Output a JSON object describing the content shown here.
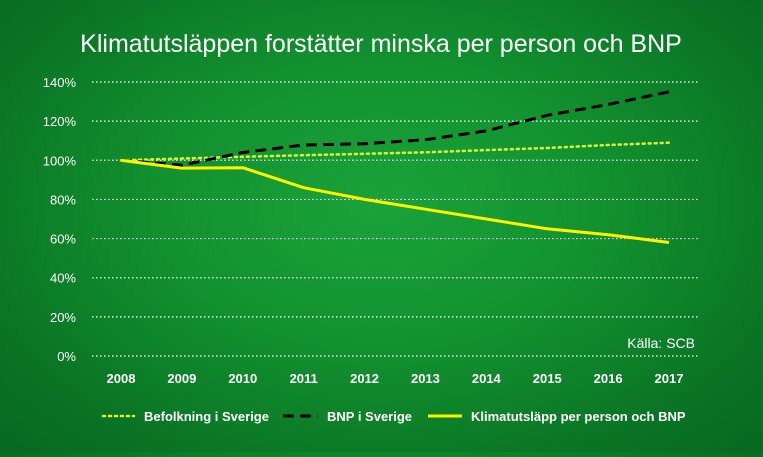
{
  "chart_data": {
    "type": "line",
    "title": "Klimatutsläppen forstätter minska per person och BNP",
    "source": "Källa: SCB",
    "xlabel": "",
    "ylabel": "",
    "categories": [
      "2008",
      "2009",
      "2010",
      "2011",
      "2012",
      "2013",
      "2014",
      "2015",
      "2016",
      "2017"
    ],
    "ylim": [
      0,
      140
    ],
    "yticks": [
      0,
      20,
      40,
      60,
      80,
      100,
      120,
      140
    ],
    "ytick_labels": [
      "0%",
      "20%",
      "40%",
      "60%",
      "80%",
      "100%",
      "120%",
      "140%"
    ],
    "grid": true,
    "legend_position": "bottom",
    "series": [
      {
        "name": "Befolkning i Sverige",
        "values": [
          100,
          100.9,
          101.8,
          102.6,
          103.3,
          104.1,
          105.2,
          106.3,
          107.8,
          109.0
        ],
        "color": "#d7ef3a",
        "style": "dotted"
      },
      {
        "name": "BNP i Sverige",
        "values": [
          100,
          97.5,
          104.0,
          107.8,
          108.5,
          110.5,
          115.0,
          123.0,
          128.5,
          135.0
        ],
        "color": "#000000",
        "style": "dashed"
      },
      {
        "name": "Klimatutsläpp per person och BNP",
        "values": [
          100,
          96.0,
          96.2,
          86.0,
          80.0,
          75.0,
          70.0,
          65.0,
          62.0,
          58.0
        ],
        "color": "#fff200",
        "style": "solid"
      }
    ]
  }
}
